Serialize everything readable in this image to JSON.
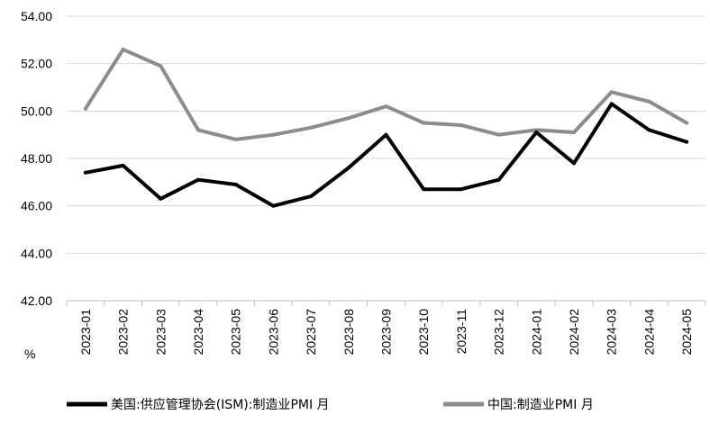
{
  "chart_data": {
    "type": "line",
    "title": "",
    "xlabel": "",
    "ylabel": "%",
    "ylim": [
      42,
      54
    ],
    "yticks": [
      "54.00",
      "52.00",
      "50.00",
      "48.00",
      "46.00",
      "44.00",
      "42.00"
    ],
    "grid": true,
    "legend_position": "bottom",
    "categories": [
      "2023-01",
      "2023-02",
      "2023-03",
      "2023-04",
      "2023-05",
      "2023-06",
      "2023-07",
      "2023-08",
      "2023-09",
      "2023-10",
      "2023-11",
      "2023-12",
      "2024-01",
      "2024-02",
      "2024-03",
      "2024-04",
      "2024-05"
    ],
    "series": [
      {
        "name": "美国:供应管理协会(ISM):制造业PMI 月",
        "color": "#000000",
        "values": [
          47.4,
          47.7,
          46.3,
          47.1,
          46.9,
          46.0,
          46.4,
          47.6,
          49.0,
          46.7,
          46.7,
          47.1,
          49.1,
          47.8,
          50.3,
          49.2,
          48.7
        ]
      },
      {
        "name": "中国:制造业PMI 月",
        "color": "#8c8c8c",
        "values": [
          50.1,
          52.6,
          51.9,
          49.2,
          48.8,
          49.0,
          49.3,
          49.7,
          50.2,
          49.5,
          49.4,
          49.0,
          49.2,
          49.1,
          50.8,
          50.4,
          49.5
        ]
      }
    ]
  }
}
